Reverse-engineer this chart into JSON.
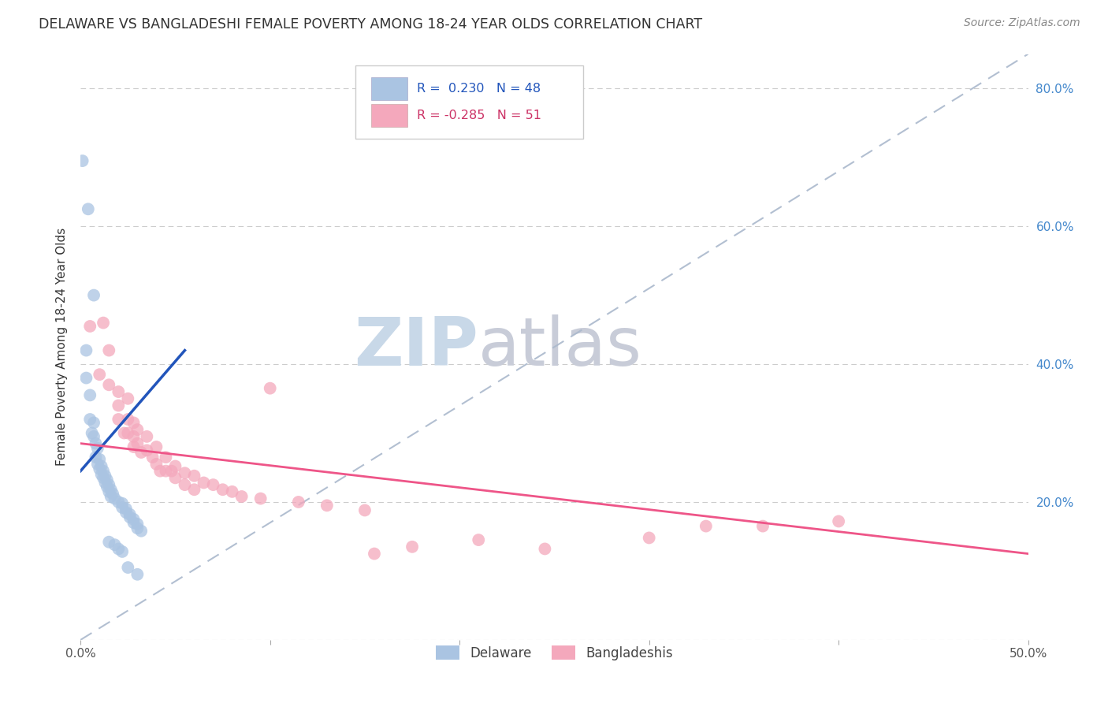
{
  "title": "DELAWARE VS BANGLADESHI FEMALE POVERTY AMONG 18-24 YEAR OLDS CORRELATION CHART",
  "source": "Source: ZipAtlas.com",
  "ylabel_left": "Female Poverty Among 18-24 Year Olds",
  "x_min": 0.0,
  "x_max": 0.5,
  "y_min": 0.0,
  "y_max": 0.85,
  "right_y_ticks": [
    0.0,
    0.2,
    0.4,
    0.6,
    0.8
  ],
  "right_y_labels": [
    "",
    "20.0%",
    "40.0%",
    "60.0%",
    "80.0%"
  ],
  "x_ticks": [
    0.0,
    0.1,
    0.2,
    0.3,
    0.4,
    0.5
  ],
  "x_labels": [
    "0.0%",
    "",
    "",
    "",
    "",
    "50.0%"
  ],
  "legend_entries": [
    {
      "label": "Delaware",
      "color": "#aac4e0",
      "R": "0.230",
      "N": "48"
    },
    {
      "label": "Bangladeshis",
      "color": "#f4a7b9",
      "R": "-0.285",
      "N": "51"
    }
  ],
  "watermark_zip": "ZIP",
  "watermark_atlas": "atlas",
  "watermark_color_zip": "#c8d8e8",
  "watermark_color_atlas": "#c8ccd8",
  "background_color": "#ffffff",
  "grid_color": "#cccccc",
  "delaware_color": "#aac4e2",
  "bangladeshi_color": "#f4a8bc",
  "delaware_trend_color": "#2255bb",
  "bangladeshi_trend_color": "#ee5588",
  "diag_line_color": "#aab8cc",
  "delaware_R": 0.23,
  "bangladeshi_R": -0.285,
  "delaware_N": 48,
  "bangladeshi_N": 51,
  "delaware_trend_x": [
    0.0,
    0.055
  ],
  "delaware_trend_y": [
    0.245,
    0.42
  ],
  "bangladeshi_trend_x": [
    0.0,
    0.5
  ],
  "bangladeshi_trend_y": [
    0.285,
    0.125
  ],
  "delaware_points": [
    [
      0.001,
      0.695
    ],
    [
      0.004,
      0.625
    ],
    [
      0.007,
      0.5
    ],
    [
      0.003,
      0.42
    ],
    [
      0.003,
      0.38
    ],
    [
      0.005,
      0.355
    ],
    [
      0.005,
      0.32
    ],
    [
      0.007,
      0.315
    ],
    [
      0.006,
      0.3
    ],
    [
      0.007,
      0.295
    ],
    [
      0.008,
      0.285
    ],
    [
      0.009,
      0.278
    ],
    [
      0.008,
      0.265
    ],
    [
      0.01,
      0.262
    ],
    [
      0.009,
      0.255
    ],
    [
      0.011,
      0.252
    ],
    [
      0.01,
      0.248
    ],
    [
      0.012,
      0.245
    ],
    [
      0.011,
      0.24
    ],
    [
      0.013,
      0.238
    ],
    [
      0.012,
      0.235
    ],
    [
      0.014,
      0.232
    ],
    [
      0.013,
      0.228
    ],
    [
      0.015,
      0.225
    ],
    [
      0.014,
      0.222
    ],
    [
      0.016,
      0.218
    ],
    [
      0.015,
      0.215
    ],
    [
      0.017,
      0.212
    ],
    [
      0.016,
      0.208
    ],
    [
      0.018,
      0.205
    ],
    [
      0.02,
      0.2
    ],
    [
      0.022,
      0.198
    ],
    [
      0.022,
      0.192
    ],
    [
      0.024,
      0.19
    ],
    [
      0.024,
      0.185
    ],
    [
      0.026,
      0.182
    ],
    [
      0.026,
      0.178
    ],
    [
      0.028,
      0.175
    ],
    [
      0.028,
      0.17
    ],
    [
      0.03,
      0.168
    ],
    [
      0.03,
      0.162
    ],
    [
      0.032,
      0.158
    ],
    [
      0.015,
      0.142
    ],
    [
      0.018,
      0.138
    ],
    [
      0.02,
      0.132
    ],
    [
      0.022,
      0.128
    ],
    [
      0.025,
      0.105
    ],
    [
      0.03,
      0.095
    ]
  ],
  "bangladeshi_points": [
    [
      0.005,
      0.455
    ],
    [
      0.01,
      0.385
    ],
    [
      0.012,
      0.46
    ],
    [
      0.015,
      0.42
    ],
    [
      0.015,
      0.37
    ],
    [
      0.02,
      0.36
    ],
    [
      0.02,
      0.34
    ],
    [
      0.02,
      0.32
    ],
    [
      0.023,
      0.3
    ],
    [
      0.025,
      0.35
    ],
    [
      0.025,
      0.32
    ],
    [
      0.025,
      0.3
    ],
    [
      0.028,
      0.315
    ],
    [
      0.028,
      0.295
    ],
    [
      0.028,
      0.28
    ],
    [
      0.03,
      0.305
    ],
    [
      0.03,
      0.285
    ],
    [
      0.032,
      0.272
    ],
    [
      0.035,
      0.295
    ],
    [
      0.035,
      0.275
    ],
    [
      0.038,
      0.265
    ],
    [
      0.04,
      0.28
    ],
    [
      0.04,
      0.255
    ],
    [
      0.042,
      0.245
    ],
    [
      0.045,
      0.265
    ],
    [
      0.045,
      0.245
    ],
    [
      0.048,
      0.245
    ],
    [
      0.05,
      0.252
    ],
    [
      0.05,
      0.235
    ],
    [
      0.055,
      0.242
    ],
    [
      0.055,
      0.225
    ],
    [
      0.06,
      0.238
    ],
    [
      0.06,
      0.218
    ],
    [
      0.065,
      0.228
    ],
    [
      0.07,
      0.225
    ],
    [
      0.075,
      0.218
    ],
    [
      0.08,
      0.215
    ],
    [
      0.085,
      0.208
    ],
    [
      0.095,
      0.205
    ],
    [
      0.1,
      0.365
    ],
    [
      0.115,
      0.2
    ],
    [
      0.13,
      0.195
    ],
    [
      0.15,
      0.188
    ],
    [
      0.155,
      0.125
    ],
    [
      0.175,
      0.135
    ],
    [
      0.21,
      0.145
    ],
    [
      0.245,
      0.132
    ],
    [
      0.3,
      0.148
    ],
    [
      0.33,
      0.165
    ],
    [
      0.36,
      0.165
    ],
    [
      0.4,
      0.172
    ]
  ]
}
